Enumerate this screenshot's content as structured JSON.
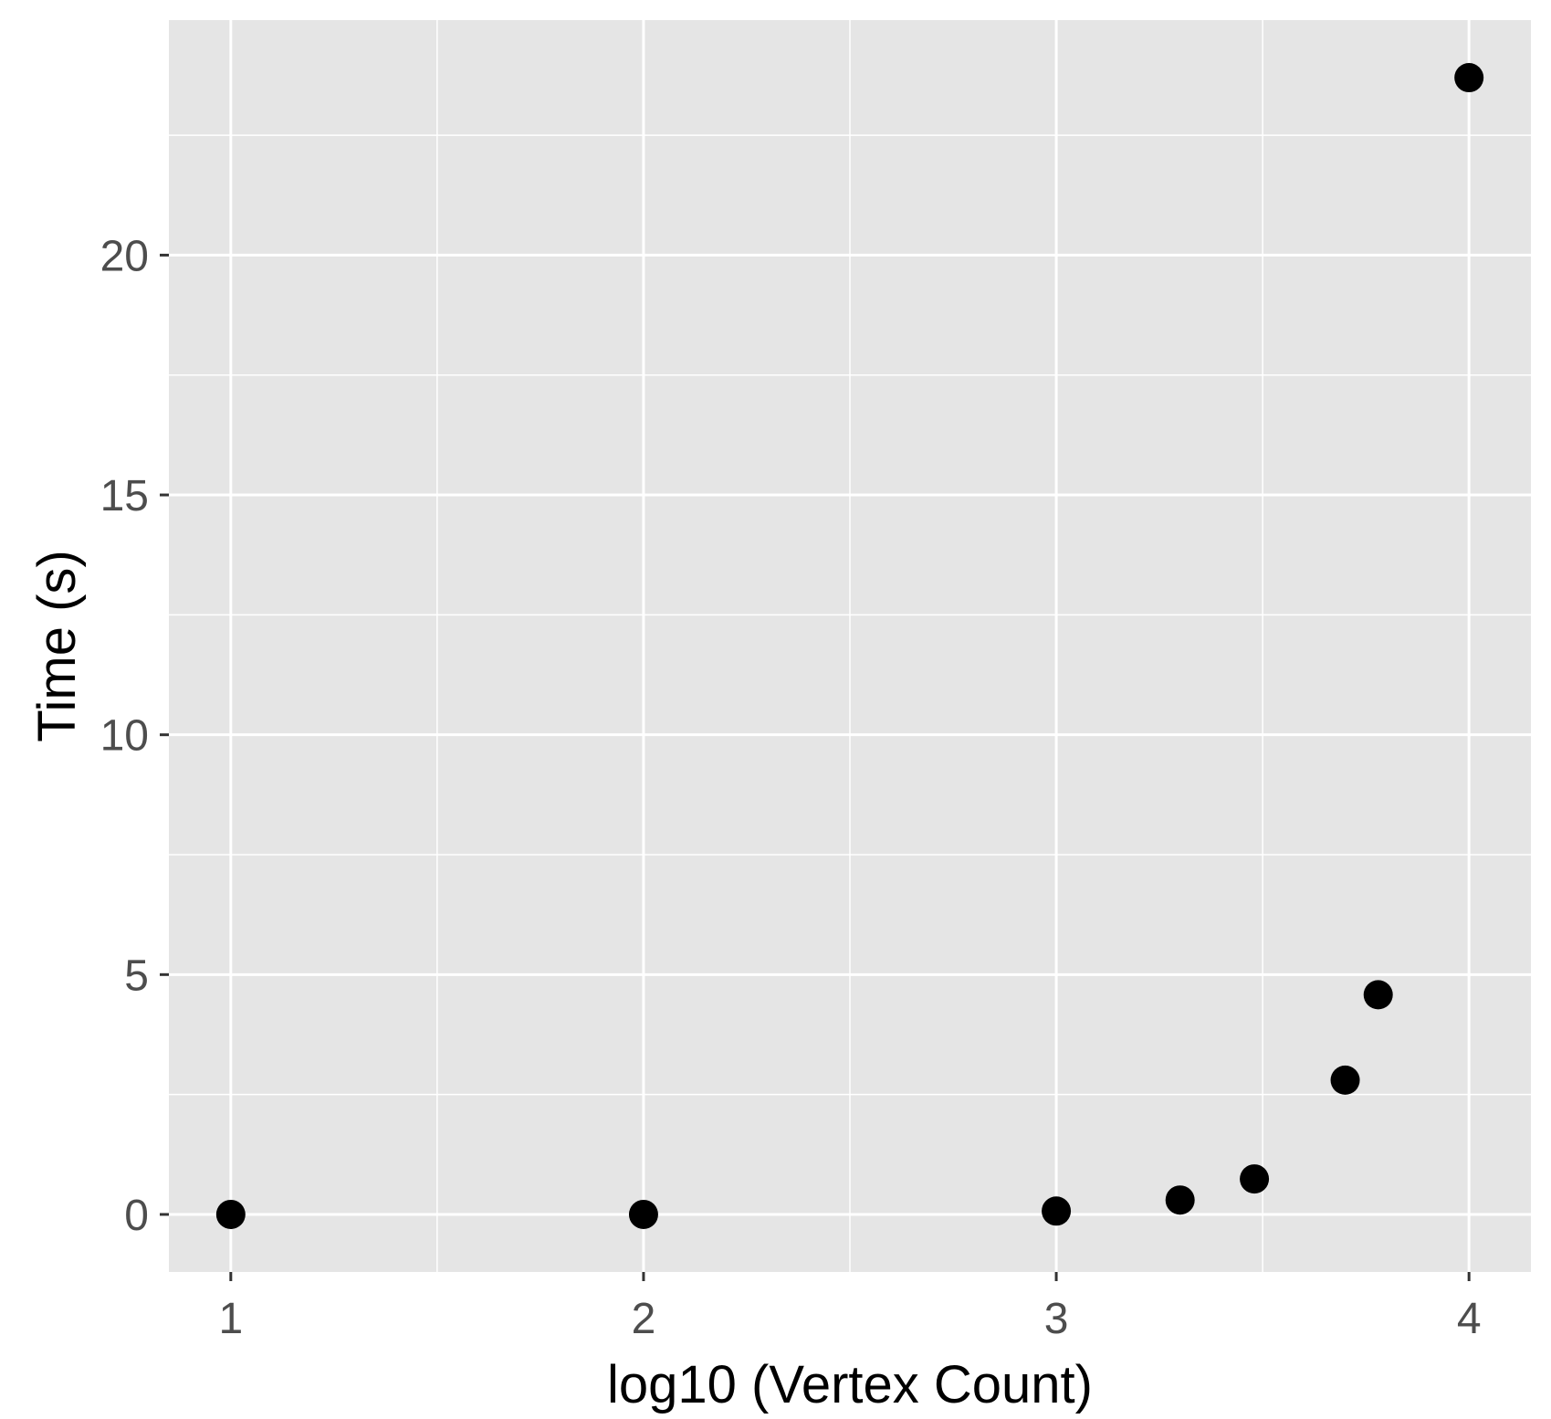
{
  "chart_data": {
    "type": "scatter",
    "xlabel": "log10 (Vertex Count)",
    "ylabel": "Time (s)",
    "xlim": [
      0.85,
      4.15
    ],
    "ylim": [
      -1.2,
      24.9
    ],
    "x_ticks": [
      1,
      2,
      3,
      4
    ],
    "x_tick_labels": [
      "1",
      "2",
      "3",
      "4"
    ],
    "x_minor_ticks": [
      1.5,
      2.5,
      3.5
    ],
    "y_ticks": [
      0,
      5,
      10,
      15,
      20
    ],
    "y_tick_labels": [
      "0",
      "5",
      "10",
      "15",
      "20"
    ],
    "y_minor_ticks": [
      2.5,
      7.5,
      12.5,
      17.5,
      22.5
    ],
    "grid": true,
    "points": [
      {
        "x": 1.0,
        "y": 0.0
      },
      {
        "x": 2.0,
        "y": 0.0
      },
      {
        "x": 3.0,
        "y": 0.07
      },
      {
        "x": 3.3,
        "y": 0.3
      },
      {
        "x": 3.48,
        "y": 0.74
      },
      {
        "x": 3.7,
        "y": 2.8
      },
      {
        "x": 3.78,
        "y": 4.58
      },
      {
        "x": 4.0,
        "y": 23.7
      }
    ],
    "colors": {
      "panel_background": "#e5e5e5",
      "grid": "#ffffff",
      "point": "#000000",
      "tick_label": "#4d4d4d",
      "axis_title": "#000000"
    }
  }
}
